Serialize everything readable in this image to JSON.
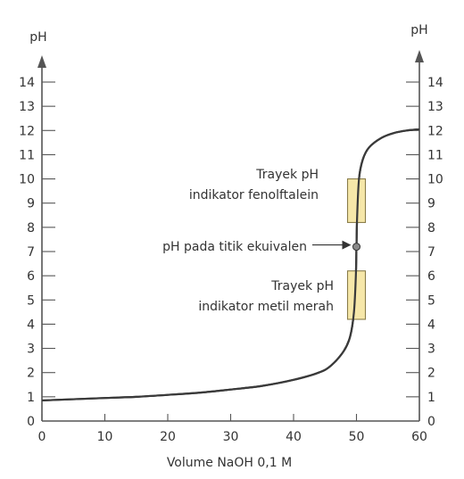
{
  "chart_data": {
    "type": "line",
    "title": "",
    "xlabel": "Volume NaOH 0,1 M",
    "ylabel_left": "pH",
    "ylabel_right": "pH",
    "xlim": [
      0,
      60
    ],
    "ylim": [
      0,
      14
    ],
    "x_ticks": [
      "0",
      "10",
      "20",
      "30",
      "40",
      "50",
      "60"
    ],
    "y_ticks": [
      "0",
      "1",
      "2",
      "3",
      "4",
      "5",
      "6",
      "7",
      "8",
      "9",
      "10",
      "11",
      "12",
      "13",
      "14"
    ],
    "series": [
      {
        "values_xy": [
          [
            0,
            0.85
          ],
          [
            5,
            0.9
          ],
          [
            10,
            0.95
          ],
          [
            15,
            1.0
          ],
          [
            20,
            1.08
          ],
          [
            25,
            1.17
          ],
          [
            30,
            1.3
          ],
          [
            35,
            1.45
          ],
          [
            40,
            1.7
          ],
          [
            44,
            2.0
          ],
          [
            46,
            2.3
          ],
          [
            48,
            2.9
          ],
          [
            49,
            3.5
          ],
          [
            49.6,
            4.5
          ],
          [
            49.9,
            6.0
          ],
          [
            50,
            7.2
          ],
          [
            50.1,
            8.4
          ],
          [
            50.4,
            10.0
          ],
          [
            51,
            10.8
          ],
          [
            52,
            11.3
          ],
          [
            54,
            11.7
          ],
          [
            56,
            11.9
          ],
          [
            58,
            12.0
          ],
          [
            60,
            12.05
          ]
        ]
      }
    ],
    "equivalence_point": {
      "x": 50,
      "y": 7.2
    },
    "indicator_ranges": [
      {
        "label_line1": "Trayek pH",
        "label_line2": "indikator fenolftalein",
        "x": 50,
        "y_min": 8.2,
        "y_max": 10.0,
        "fill": "#f6e7a9"
      },
      {
        "label_line1": "Trayek pH",
        "label_line2": "indikator metil merah",
        "x": 50,
        "y_min": 4.2,
        "y_max": 6.2,
        "fill": "#f6e7a9"
      }
    ],
    "annotations": {
      "equivalence": "pH pada titik ekuivalen"
    },
    "colors": {
      "curve": "#3a3a3a",
      "axis": "#555555",
      "box_stroke": "#8a7d4a"
    }
  }
}
